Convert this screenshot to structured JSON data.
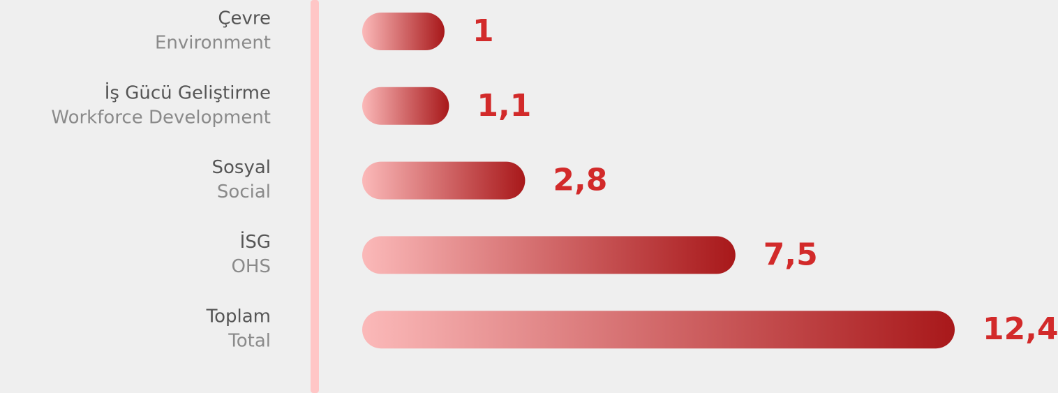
{
  "chart_data": {
    "type": "bar",
    "orientation": "horizontal",
    "categories": [
      "Çevre",
      "İş Gücü Geliştirme",
      "Sosyal",
      "İSG",
      "Toplam"
    ],
    "category_translations": [
      "Environment",
      "Workforce Development",
      "Social",
      "OHS",
      "Total"
    ],
    "values": [
      1,
      1.1,
      2.8,
      7.5,
      12.4
    ],
    "value_labels": [
      "1",
      "1,1",
      "2,8",
      "7,5",
      "12,4"
    ],
    "xlim": [
      -0.84,
      12.4
    ],
    "color_start": "#fbb9b9",
    "color_end": "#a8181a",
    "label_color": "#d22a2a"
  }
}
